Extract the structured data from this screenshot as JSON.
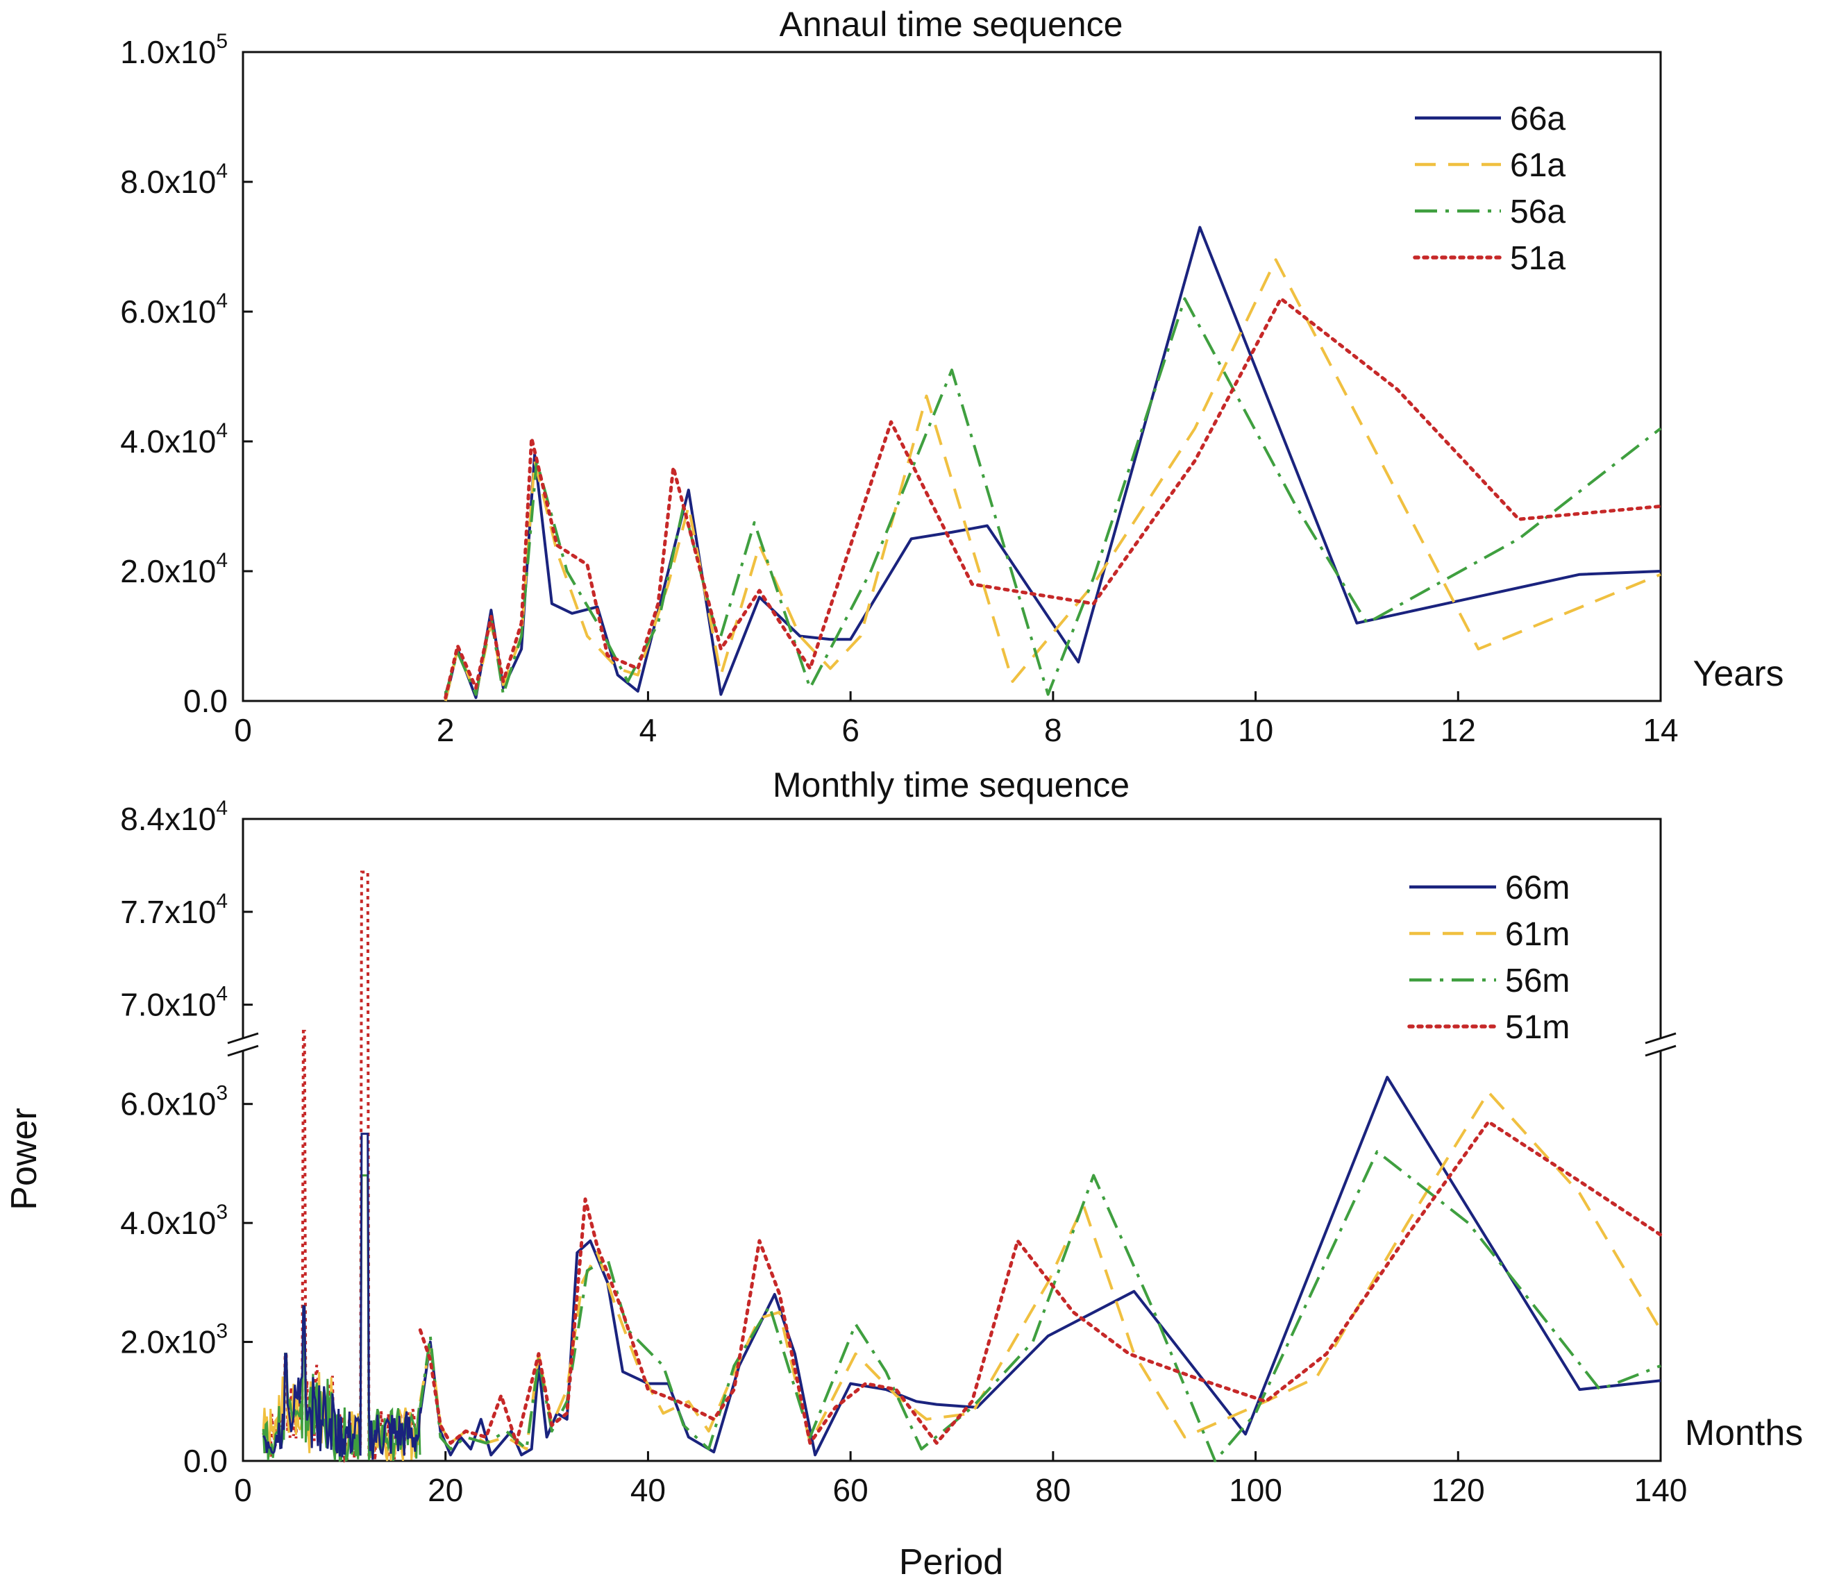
{
  "y_label": "Power",
  "x_label": "Period",
  "colors": {
    "66": "#1a237e",
    "61": "#f0c040",
    "56": "#3f9f3f",
    "51": "#c62828"
  },
  "chart_data": [
    {
      "type": "line",
      "title": "Annaul time sequence",
      "xlabel": "Years",
      "xlim": [
        0,
        14
      ],
      "xticks": [
        "0",
        "2",
        "4",
        "6",
        "8",
        "10",
        "12",
        "14"
      ],
      "ylim": [
        0,
        100000
      ],
      "yticks": [
        {
          "mant": "0.0",
          "exp": ""
        },
        {
          "mant": "2.0x10",
          "exp": "4"
        },
        {
          "mant": "4.0x10",
          "exp": "4"
        },
        {
          "mant": "6.0x10",
          "exp": "4"
        },
        {
          "mant": "8.0x10",
          "exp": "4"
        },
        {
          "mant": "1.0x10",
          "exp": "5"
        }
      ],
      "series": [
        {
          "name": "66a",
          "dash": "solid",
          "x": [
            2.0,
            2.12,
            2.3,
            2.45,
            2.57,
            2.75,
            2.88,
            3.05,
            3.25,
            3.5,
            3.7,
            3.9,
            4.2,
            4.4,
            4.72,
            5.1,
            5.5,
            5.8,
            6.0,
            6.6,
            7.0,
            7.35,
            8.25,
            9.45,
            11.0,
            13.2,
            14.0
          ],
          "y": [
            0,
            8000,
            500,
            14000,
            2000,
            8000,
            38000,
            15000,
            13500,
            14500,
            4000,
            1500,
            20000,
            32500,
            1000,
            16000,
            10000,
            9500,
            9500,
            25000,
            26000,
            27000,
            6000,
            73000,
            12000,
            19500,
            20000
          ]
        },
        {
          "name": "61a",
          "dash": "dashed",
          "x": [
            2.0,
            2.12,
            2.3,
            2.45,
            2.57,
            2.75,
            2.88,
            3.1,
            3.4,
            3.7,
            3.9,
            4.2,
            4.4,
            4.72,
            5.1,
            5.5,
            5.8,
            6.1,
            6.75,
            7.6,
            8.4,
            9.4,
            10.2,
            11.3,
            12.2,
            14.0
          ],
          "y": [
            0,
            8000,
            1000,
            12000,
            2500,
            10000,
            37000,
            23000,
            10000,
            5000,
            4000,
            18000,
            30000,
            4000,
            24000,
            10000,
            5000,
            10000,
            47000,
            3000,
            18000,
            42000,
            68000,
            35000,
            8000,
            19500
          ]
        },
        {
          "name": "56a",
          "dash": "dashdot",
          "x": [
            2.0,
            2.12,
            2.3,
            2.45,
            2.57,
            2.75,
            2.9,
            3.2,
            3.5,
            3.8,
            4.1,
            4.35,
            4.7,
            5.05,
            5.6,
            6.2,
            7.0,
            7.95,
            8.4,
            9.3,
            10.4,
            11.1,
            12.6,
            14.0
          ],
          "y": [
            1000,
            7500,
            1000,
            13000,
            1000,
            10000,
            37000,
            20000,
            12000,
            3000,
            12000,
            30000,
            9000,
            27500,
            2000,
            20000,
            51000,
            1000,
            19000,
            62000,
            30000,
            12000,
            25000,
            42000
          ]
        },
        {
          "name": "51a",
          "dash": "dotted",
          "x": [
            2.0,
            2.12,
            2.3,
            2.45,
            2.57,
            2.75,
            2.85,
            3.1,
            3.4,
            3.6,
            3.9,
            4.1,
            4.25,
            4.72,
            5.1,
            5.6,
            6.4,
            7.2,
            8.4,
            9.4,
            10.25,
            11.4,
            12.6,
            14.0
          ],
          "y": [
            500,
            8500,
            2000,
            13000,
            3000,
            12000,
            40500,
            24000,
            21000,
            7000,
            5000,
            15000,
            36000,
            8000,
            17000,
            5000,
            43000,
            18000,
            15000,
            37000,
            62000,
            48000,
            28000,
            30000
          ]
        }
      ],
      "legend": "top-right"
    },
    {
      "type": "line",
      "title": "Monthly time sequence",
      "xlabel": "Months",
      "xlim": [
        0,
        140
      ],
      "xticks": [
        "0",
        "20",
        "40",
        "60",
        "80",
        "100",
        "120",
        "140"
      ],
      "y_axis_break": true,
      "lower_ylim": [
        0,
        7000
      ],
      "upper_ylim": [
        67000,
        84000
      ],
      "yticks": [
        {
          "mant": "0.0",
          "exp": ""
        },
        {
          "mant": "2.0x10",
          "exp": "3"
        },
        {
          "mant": "4.0x10",
          "exp": "3"
        },
        {
          "mant": "6.0x10",
          "exp": "3"
        },
        {
          "mant": "7.0x10",
          "exp": "4"
        },
        {
          "mant": "7.7x10",
          "exp": "4"
        },
        {
          "mant": "8.4x10",
          "exp": "4"
        }
      ],
      "series": [
        {
          "name": "66m",
          "dash": "solid",
          "x": [
            17.5,
            18.5,
            19.5,
            20.5,
            21.5,
            22.5,
            23.5,
            24.5,
            25.5,
            26.5,
            27.5,
            28.5,
            29.2,
            30.0,
            31.0,
            32.0,
            33.0,
            34.3,
            36.0,
            37.5,
            40.0,
            42.0,
            44.0,
            46.5,
            49.0,
            52.5,
            54.5,
            56.5,
            60.0,
            63.5,
            66.5,
            68.5,
            72.5,
            79.5,
            88.0,
            99.0,
            113.0,
            132.0,
            140.0
          ],
          "y": [
            800,
            2000,
            500,
            100,
            400,
            200,
            700,
            100,
            300,
            500,
            100,
            200,
            1600,
            400,
            800,
            700,
            3500,
            3700,
            3000,
            1500,
            1300,
            1300,
            400,
            150,
            1600,
            2800,
            1800,
            100,
            1300,
            1200,
            1000,
            950,
            900,
            2100,
            2850,
            450,
            6450,
            1200,
            1350
          ]
        },
        {
          "name": "61m",
          "dash": "dashed",
          "x": [
            17.5,
            18.5,
            19.5,
            20.5,
            22.0,
            24.0,
            26.0,
            28.0,
            29.2,
            30.5,
            32.0,
            33.5,
            35.0,
            37.0,
            39.0,
            41.5,
            44.0,
            46.0,
            48.5,
            51.0,
            53.0,
            56.0,
            60.5,
            64.5,
            67.5,
            72.0,
            79.5,
            83.0,
            88.0,
            93.0,
            101.0,
            106.0,
            115.0,
            123.0,
            132.0,
            140.0
          ],
          "y": [
            1000,
            2000,
            600,
            300,
            500,
            300,
            400,
            200,
            1800,
            600,
            1200,
            3000,
            3500,
            2500,
            1600,
            800,
            1000,
            500,
            1500,
            2400,
            2500,
            300,
            1800,
            1100,
            700,
            800,
            3000,
            4300,
            1800,
            400,
            1000,
            1400,
            4000,
            6200,
            4500,
            2200
          ]
        },
        {
          "name": "56m",
          "dash": "dashdot",
          "x": [
            17.5,
            18.5,
            19.5,
            20.5,
            22.0,
            24.0,
            26.0,
            28.0,
            29.2,
            30.5,
            32.0,
            34.0,
            36.0,
            38.0,
            41.5,
            43.5,
            46.0,
            48.5,
            52.0,
            56.0,
            60.5,
            63.5,
            67.0,
            72.0,
            78.0,
            84.0,
            90.0,
            96.0,
            100.0,
            112.0,
            121.0,
            128.0,
            134.0,
            140.0
          ],
          "y": [
            900,
            2100,
            400,
            200,
            400,
            300,
            500,
            200,
            1700,
            500,
            1000,
            3200,
            3400,
            2200,
            1600,
            600,
            200,
            1600,
            2600,
            400,
            2300,
            1500,
            200,
            900,
            2000,
            4800,
            2500,
            0,
            800,
            5200,
            4000,
            2500,
            1200,
            1600
          ]
        },
        {
          "name": "51m",
          "dash": "dotted",
          "x": [
            17.5,
            18.5,
            19.5,
            20.5,
            22.0,
            24.0,
            25.5,
            27.0,
            29.2,
            30.5,
            32.0,
            33.8,
            35.0,
            37.5,
            40.0,
            43.0,
            46.5,
            48.5,
            51.0,
            53.0,
            56.0,
            58.5,
            61.5,
            64.5,
            68.5,
            72.0,
            76.5,
            82.0,
            87.5,
            94.0,
            101.0,
            107.0,
            115.0,
            123.0,
            132.0,
            140.0
          ],
          "y": [
            2200,
            1700,
            600,
            300,
            500,
            400,
            1100,
            300,
            1800,
            600,
            800,
            4400,
            3600,
            2500,
            1200,
            1000,
            700,
            1200,
            3700,
            2800,
            300,
            900,
            1300,
            1200,
            300,
            1000,
            3700,
            2500,
            1800,
            1400,
            1000,
            1800,
            3800,
            5700,
            4700,
            3800
          ]
        }
      ],
      "legend": "top-right"
    }
  ]
}
